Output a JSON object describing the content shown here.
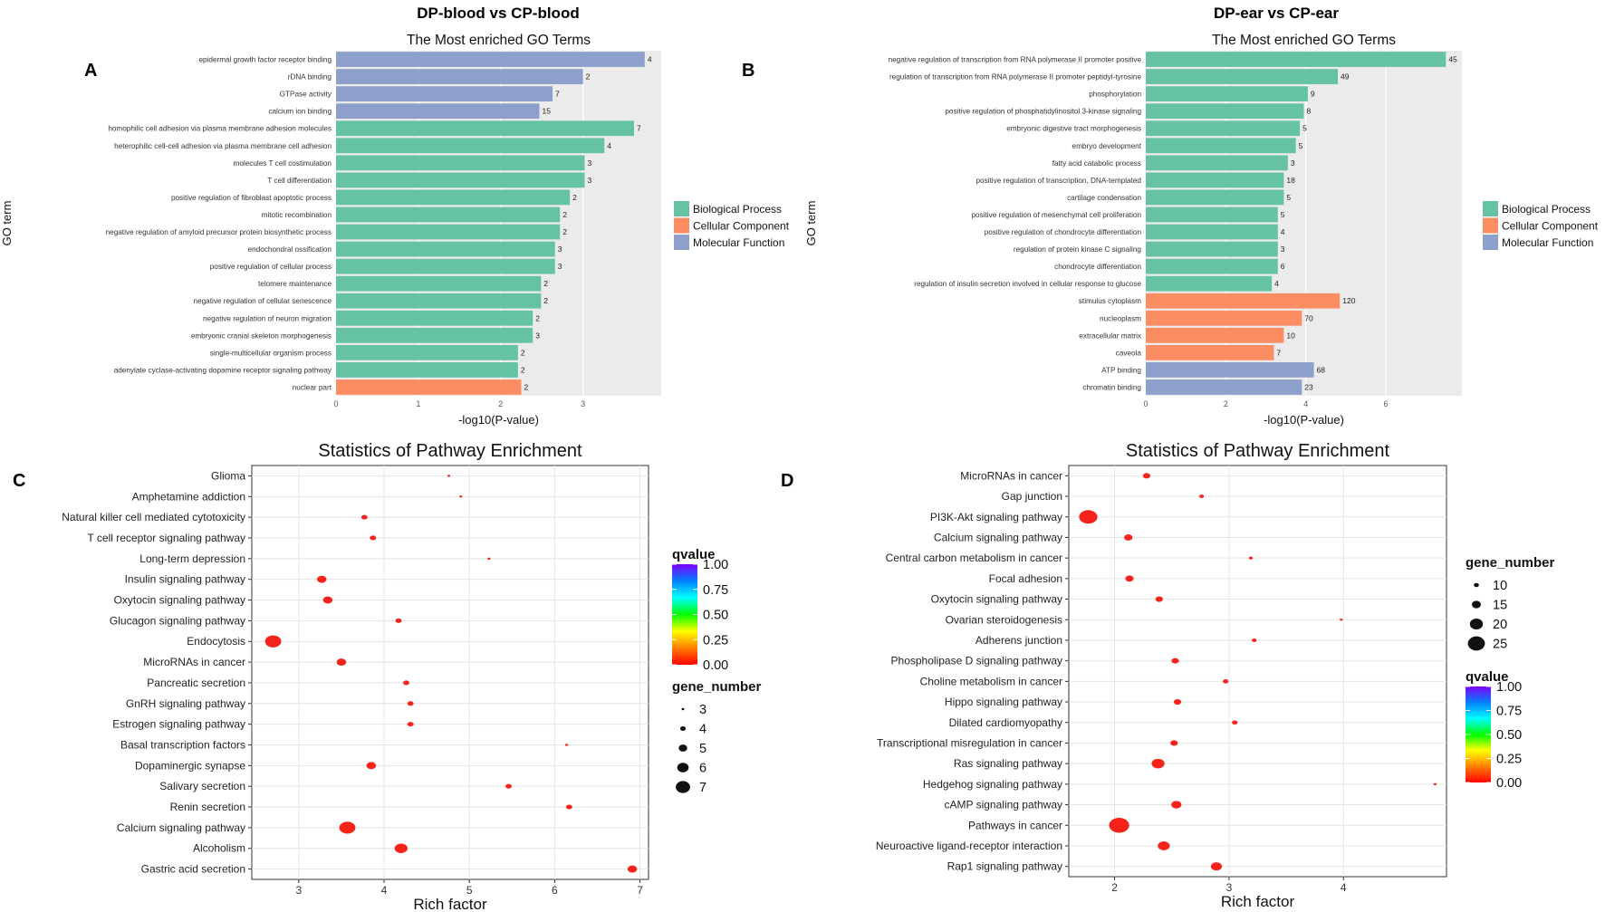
{
  "panels": {
    "A": {
      "letter": "A",
      "header": "DP-blood vs CP-blood"
    },
    "B": {
      "letter": "B",
      "header": "DP-ear vs CP-ear"
    },
    "C": {
      "letter": "C"
    },
    "D": {
      "letter": "D"
    }
  },
  "colors": {
    "biological_process": "#66C2A5",
    "cellular_component": "#FC8D62",
    "molecular_function": "#8DA0CB",
    "panel_bg": "#EBEBEB",
    "grid": "#FFFFFF",
    "qvalue_gradient": [
      "#FF0000",
      "#FF7F00",
      "#FFFF00",
      "#00FF00",
      "#00FFFF",
      "#0080FF",
      "#8000FF"
    ]
  },
  "chart_data": [
    {
      "id": "A",
      "type": "bar",
      "orientation": "horizontal",
      "title": "The Most enriched GO Terms",
      "xlabel": "-log10(P-value)",
      "ylabel": "GO term",
      "xlim": [
        0,
        3.95
      ],
      "xticks": [
        "0",
        "1",
        "2",
        "3"
      ],
      "legend": {
        "position": "right",
        "entries": [
          "Biological Process",
          "Cellular Component",
          "Molecular Function"
        ]
      },
      "bars": [
        {
          "term": "epidermal growth factor receptor binding",
          "value": 3.75,
          "count": "4",
          "category": "Molecular Function"
        },
        {
          "term": "rDNA binding",
          "value": 3.0,
          "count": "2",
          "category": "Molecular Function"
        },
        {
          "term": "GTPase activity",
          "value": 2.63,
          "count": "7",
          "category": "Molecular Function"
        },
        {
          "term": "calcium ion binding",
          "value": 2.47,
          "count": "15",
          "category": "Molecular Function"
        },
        {
          "term": "homophilic cell adhesion via plasma membrane adhesion molecules",
          "value": 3.62,
          "count": "7",
          "category": "Biological Process"
        },
        {
          "term": "heterophilic cell-cell adhesion via plasma membrane cell adhesion",
          "value": 3.26,
          "count": "4",
          "category": "Biological Process"
        },
        {
          "term": "molecules T cell costimulation",
          "value": 3.02,
          "count": "3",
          "category": "Biological Process"
        },
        {
          "term": "T cell differentiation",
          "value": 3.02,
          "count": "3",
          "category": "Biological Process"
        },
        {
          "term": "positive regulation of fibroblast apoptotic process",
          "value": 2.84,
          "count": "2",
          "category": "Biological Process"
        },
        {
          "term": "mitotic recombination",
          "value": 2.72,
          "count": "2",
          "category": "Biological Process"
        },
        {
          "term": "negative regulation of amyloid precursor protein biosynthetic process",
          "value": 2.72,
          "count": "2",
          "category": "Biological Process"
        },
        {
          "term": "endochondral ossification",
          "value": 2.66,
          "count": "3",
          "category": "Biological Process"
        },
        {
          "term": "positive regulation of cellular process",
          "value": 2.66,
          "count": "3",
          "category": "Biological Process"
        },
        {
          "term": "telomere maintenance",
          "value": 2.49,
          "count": "2",
          "category": "Biological Process"
        },
        {
          "term": "negative regulation of cellular senescence",
          "value": 2.49,
          "count": "2",
          "category": "Biological Process"
        },
        {
          "term": "negative regulation of neuron migration",
          "value": 2.39,
          "count": "2",
          "category": "Biological Process"
        },
        {
          "term": "embryonic cranial skeleton morphogenesis",
          "value": 2.39,
          "count": "3",
          "category": "Biological Process"
        },
        {
          "term": "single-multicellular organism process",
          "value": 2.21,
          "count": "2",
          "category": "Biological Process"
        },
        {
          "term": "adenylate cyclase-activating dopamine receptor signaling pathway",
          "value": 2.21,
          "count": "2",
          "category": "Biological Process"
        },
        {
          "term": "nuclear part",
          "value": 2.25,
          "count": "2",
          "category": "Cellular Component"
        }
      ]
    },
    {
      "id": "B",
      "type": "bar",
      "orientation": "horizontal",
      "title": "The Most enriched GO Terms",
      "xlabel": "-log10(P-value)",
      "ylabel": "GO term",
      "xlim": [
        0,
        7.9
      ],
      "xticks": [
        "0",
        "2",
        "4",
        "6"
      ],
      "legend": {
        "position": "right",
        "entries": [
          "Biological Process",
          "Cellular Component",
          "Molecular Function"
        ]
      },
      "bars": [
        {
          "term": "negative regulation of transcription from RNA polymerase II promoter positive",
          "value": 7.5,
          "count": "45",
          "category": "Biological Process"
        },
        {
          "term": "regulation of transcription from RNA polymerase II promoter peptidyl-tyrosine",
          "value": 4.8,
          "count": "49",
          "category": "Biological Process"
        },
        {
          "term": "phosphorylation",
          "value": 4.05,
          "count": "9",
          "category": "Biological Process"
        },
        {
          "term": "positive regulation of phosphatidylinositol 3-kinase signaling",
          "value": 3.95,
          "count": "8",
          "category": "Biological Process"
        },
        {
          "term": "embryonic digestive tract morphogenesis",
          "value": 3.85,
          "count": "5",
          "category": "Biological Process"
        },
        {
          "term": "embryo development",
          "value": 3.75,
          "count": "5",
          "category": "Biological Process"
        },
        {
          "term": "fatty acid catabolic process",
          "value": 3.55,
          "count": "3",
          "category": "Biological Process"
        },
        {
          "term": "positive regulation of transcription, DNA-templated",
          "value": 3.45,
          "count": "18",
          "category": "Biological Process"
        },
        {
          "term": "cartilage condensation",
          "value": 3.45,
          "count": "5",
          "category": "Biological Process"
        },
        {
          "term": "positive regulation of mesenchymal cell proliferation",
          "value": 3.3,
          "count": "5",
          "category": "Biological Process"
        },
        {
          "term": "positive regulation of chondrocyte differentiation",
          "value": 3.3,
          "count": "4",
          "category": "Biological Process"
        },
        {
          "term": "regulation of protein kinase C signaling",
          "value": 3.3,
          "count": "3",
          "category": "Biological Process"
        },
        {
          "term": "chondrocyte differentiation",
          "value": 3.3,
          "count": "6",
          "category": "Biological Process"
        },
        {
          "term": "regulation of insulin secretion involved in cellular response to glucose",
          "value": 3.15,
          "count": "4",
          "category": "Biological Process"
        },
        {
          "term": "stimulus cytoplasm",
          "value": 4.85,
          "count": "120",
          "category": "Cellular Component"
        },
        {
          "term": "nucleoplasm",
          "value": 3.9,
          "count": "70",
          "category": "Cellular Component"
        },
        {
          "term": "extracellular matrix",
          "value": 3.45,
          "count": "10",
          "category": "Cellular Component"
        },
        {
          "term": "caveola",
          "value": 3.2,
          "count": "7",
          "category": "Cellular Component"
        },
        {
          "term": "ATP binding",
          "value": 4.2,
          "count": "68",
          "category": "Molecular Function"
        },
        {
          "term": "chromatin binding",
          "value": 3.9,
          "count": "23",
          "category": "Molecular Function"
        }
      ]
    },
    {
      "id": "C",
      "type": "scatter",
      "title": "Statistics of Pathway Enrichment",
      "xlabel": "Rich factor",
      "ylabel": "",
      "xlim": [
        2.45,
        7.1
      ],
      "xticks": [
        3,
        4,
        5,
        6,
        7
      ],
      "legend_qvalue": {
        "title": "qvalue",
        "ticks": [
          "1.00",
          "0.75",
          "0.50",
          "0.25",
          "0.00"
        ]
      },
      "legend_size": {
        "title": "gene_number",
        "values": [
          "3",
          "4",
          "5",
          "6",
          "7"
        ]
      },
      "points": [
        {
          "pathway": "Glioma",
          "rich_factor": 4.76,
          "gene_number": 3,
          "qvalue": 0.0
        },
        {
          "pathway": "Amphetamine addiction",
          "rich_factor": 4.9,
          "gene_number": 3,
          "qvalue": 0.0
        },
        {
          "pathway": "Natural killer cell mediated cytotoxicity",
          "rich_factor": 3.77,
          "gene_number": 4,
          "qvalue": 0.0
        },
        {
          "pathway": "T cell receptor signaling pathway",
          "rich_factor": 3.87,
          "gene_number": 4,
          "qvalue": 0.0
        },
        {
          "pathway": "Long-term depression",
          "rich_factor": 5.23,
          "gene_number": 3,
          "qvalue": 0.0
        },
        {
          "pathway": "Insulin signaling pathway",
          "rich_factor": 3.27,
          "gene_number": 5,
          "qvalue": 0.0
        },
        {
          "pathway": "Oxytocin signaling pathway",
          "rich_factor": 3.34,
          "gene_number": 5,
          "qvalue": 0.0
        },
        {
          "pathway": "Glucagon signaling pathway",
          "rich_factor": 4.17,
          "gene_number": 4,
          "qvalue": 0.0
        },
        {
          "pathway": "Endocytosis",
          "rich_factor": 2.7,
          "gene_number": 7,
          "qvalue": 0.0
        },
        {
          "pathway": "MicroRNAs in cancer",
          "rich_factor": 3.5,
          "gene_number": 5,
          "qvalue": 0.0
        },
        {
          "pathway": "Pancreatic secretion",
          "rich_factor": 4.26,
          "gene_number": 4,
          "qvalue": 0.0
        },
        {
          "pathway": "GnRH signaling pathway",
          "rich_factor": 4.31,
          "gene_number": 4,
          "qvalue": 0.0
        },
        {
          "pathway": "Estrogen signaling pathway",
          "rich_factor": 4.31,
          "gene_number": 4,
          "qvalue": 0.0
        },
        {
          "pathway": "Basal transcription factors",
          "rich_factor": 6.14,
          "gene_number": 3,
          "qvalue": 0.0
        },
        {
          "pathway": "Dopaminergic synapse",
          "rich_factor": 3.85,
          "gene_number": 5,
          "qvalue": 0.0
        },
        {
          "pathway": "Salivary secretion",
          "rich_factor": 5.46,
          "gene_number": 4,
          "qvalue": 0.0
        },
        {
          "pathway": "Renin secretion",
          "rich_factor": 6.17,
          "gene_number": 4,
          "qvalue": 0.0
        },
        {
          "pathway": "Calcium signaling pathway",
          "rich_factor": 3.57,
          "gene_number": 7,
          "qvalue": 0.0
        },
        {
          "pathway": "Alcoholism",
          "rich_factor": 4.2,
          "gene_number": 6,
          "qvalue": 0.0
        },
        {
          "pathway": "Gastric acid secretion",
          "rich_factor": 6.91,
          "gene_number": 5,
          "qvalue": 0.0
        }
      ]
    },
    {
      "id": "D",
      "type": "scatter",
      "title": "Statistics of Pathway Enrichment",
      "xlabel": "Rich factor",
      "ylabel": "",
      "xlim": [
        1.6,
        4.9
      ],
      "xticks": [
        2,
        3,
        4
      ],
      "legend_size": {
        "title": "gene_number",
        "values": [
          "10",
          "15",
          "20",
          "25"
        ]
      },
      "legend_qvalue": {
        "title": "qvalue",
        "ticks": [
          "1.00",
          "0.75",
          "0.50",
          "0.25",
          "0.00"
        ]
      },
      "points": [
        {
          "pathway": "MicroRNAs in cancer",
          "rich_factor": 2.28,
          "gene_number": 12,
          "qvalue": 0.0
        },
        {
          "pathway": "Gap junction",
          "rich_factor": 2.76,
          "gene_number": 9,
          "qvalue": 0.0
        },
        {
          "pathway": "PI3K-Akt signaling pathway",
          "rich_factor": 1.77,
          "gene_number": 24,
          "qvalue": 0.0
        },
        {
          "pathway": "Calcium signaling pathway",
          "rich_factor": 2.12,
          "gene_number": 13,
          "qvalue": 0.0
        },
        {
          "pathway": "Central carbon metabolism in cancer",
          "rich_factor": 3.19,
          "gene_number": 8,
          "qvalue": 0.0
        },
        {
          "pathway": "Focal adhesion",
          "rich_factor": 2.13,
          "gene_number": 13,
          "qvalue": 0.0
        },
        {
          "pathway": "Oxytocin signaling pathway",
          "rich_factor": 2.39,
          "gene_number": 12,
          "qvalue": 0.0
        },
        {
          "pathway": "Ovarian steroidogenesis",
          "rich_factor": 3.98,
          "gene_number": 7,
          "qvalue": 0.0
        },
        {
          "pathway": "Adherens junction",
          "rich_factor": 3.22,
          "gene_number": 9,
          "qvalue": 0.0
        },
        {
          "pathway": "Phospholipase D signaling pathway",
          "rich_factor": 2.53,
          "gene_number": 12,
          "qvalue": 0.0
        },
        {
          "pathway": "Choline metabolism in cancer",
          "rich_factor": 2.97,
          "gene_number": 10,
          "qvalue": 0.0
        },
        {
          "pathway": "Hippo signaling pathway",
          "rich_factor": 2.55,
          "gene_number": 12,
          "qvalue": 0.0
        },
        {
          "pathway": "Dilated cardiomyopathy",
          "rich_factor": 3.05,
          "gene_number": 10,
          "qvalue": 0.0
        },
        {
          "pathway": "Transcriptional misregulation in cancer",
          "rich_factor": 2.52,
          "gene_number": 12,
          "qvalue": 0.0
        },
        {
          "pathway": "Ras signaling pathway",
          "rich_factor": 2.38,
          "gene_number": 18,
          "qvalue": 0.0
        },
        {
          "pathway": "Hedgehog signaling pathway",
          "rich_factor": 4.8,
          "gene_number": 7,
          "qvalue": 0.0
        },
        {
          "pathway": "cAMP signaling pathway",
          "rich_factor": 2.54,
          "gene_number": 15,
          "qvalue": 0.0
        },
        {
          "pathway": "Pathways in cancer",
          "rich_factor": 2.04,
          "gene_number": 26,
          "qvalue": 0.0
        },
        {
          "pathway": "Neuroactive ligand-receptor interaction",
          "rich_factor": 2.43,
          "gene_number": 17,
          "qvalue": 0.0
        },
        {
          "pathway": "Rap1 signaling pathway",
          "rich_factor": 2.89,
          "gene_number": 16,
          "qvalue": 0.0
        }
      ]
    }
  ]
}
